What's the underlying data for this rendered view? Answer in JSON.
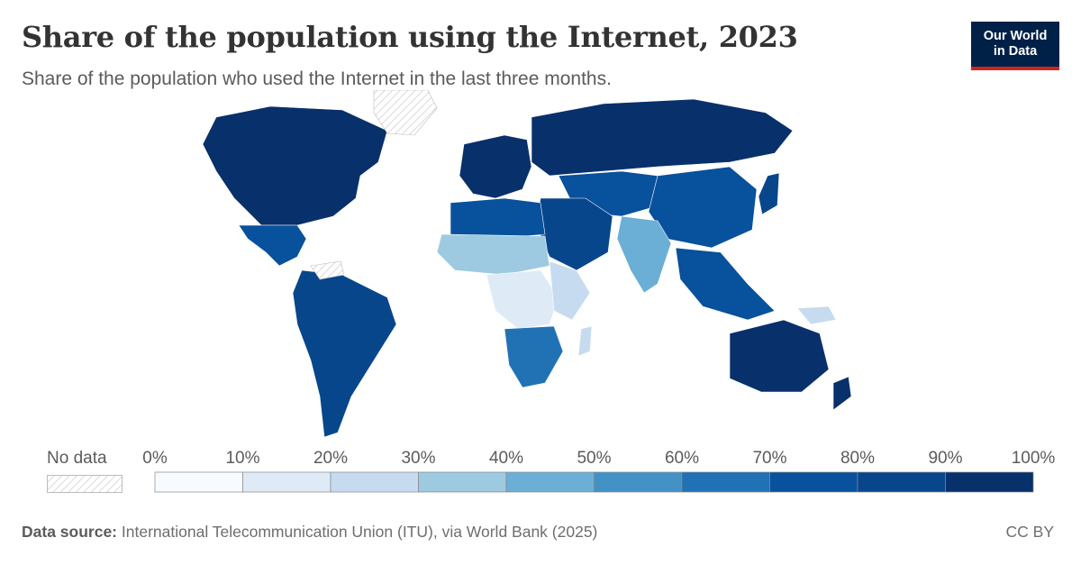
{
  "header": {
    "title": "Share of the population using the Internet, 2023",
    "subtitle": "Share of the population who used the Internet in the last three months."
  },
  "logo": {
    "line1": "Our World",
    "line2": "in Data"
  },
  "legend": {
    "no_data_label": "No data",
    "ticks": [
      "0%",
      "10%",
      "20%",
      "30%",
      "40%",
      "50%",
      "60%",
      "70%",
      "80%",
      "90%",
      "100%"
    ],
    "colors": [
      "#f7fbff",
      "#deebf7",
      "#c6dbef",
      "#9ecae1",
      "#6baed6",
      "#4292c6",
      "#2171b5",
      "#08519c",
      "#08468c",
      "#08306b"
    ]
  },
  "footer": {
    "source_label": "Data source:",
    "source_text": "International Telecommunication Union (ITU), via World Bank (2025)",
    "license": "CC BY"
  },
  "map_data": {
    "no_data_regions": [
      "Greenland",
      "Venezuela"
    ],
    "region_shares_percent": [
      {
        "region": "North America",
        "value": 93
      },
      {
        "region": "Central America",
        "value": 75
      },
      {
        "region": "South America",
        "value": 82
      },
      {
        "region": "Western Europe",
        "value": 92
      },
      {
        "region": "Russia",
        "value": 92
      },
      {
        "region": "Central Asia",
        "value": 78
      },
      {
        "region": "China",
        "value": 77
      },
      {
        "region": "South Asia",
        "value": 43
      },
      {
        "region": "Southeast Asia",
        "value": 72
      },
      {
        "region": "Middle East",
        "value": 85
      },
      {
        "region": "North Africa",
        "value": 72
      },
      {
        "region": "Sahel",
        "value": 30
      },
      {
        "region": "Central Africa",
        "value": 18
      },
      {
        "region": "East Africa",
        "value": 22
      },
      {
        "region": "Southern Africa",
        "value": 60
      },
      {
        "region": "Madagascar",
        "value": 20
      },
      {
        "region": "Australia",
        "value": 96
      },
      {
        "region": "New Zealand",
        "value": 95
      },
      {
        "region": "Japan",
        "value": 85
      },
      {
        "region": "Papua New Guinea",
        "value": 25
      }
    ]
  }
}
